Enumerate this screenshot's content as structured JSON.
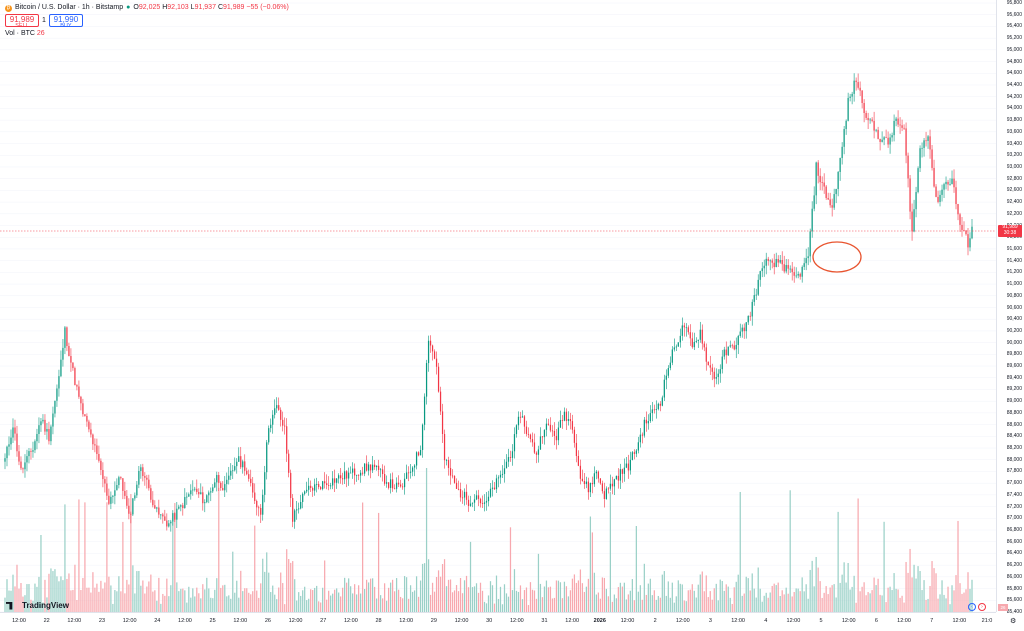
{
  "header": {
    "symbol_title": "Bitcoin / U.S. Dollar · 1h · Bitstamp",
    "open_label": "O",
    "open_value": "92,025",
    "high_label": "H",
    "high_value": "92,103",
    "low_label": "L",
    "low_value": "91,937",
    "close_label": "C",
    "close_value": "91,989",
    "change": "−55 (−0.06%)"
  },
  "trade": {
    "sell_price": "91,989",
    "sell_label": "SELL",
    "buy_price": "91,990",
    "buy_label": "BUY",
    "quantity": "1"
  },
  "volume_legend": {
    "label": "Vol · BTC",
    "value": "26"
  },
  "price_axis": {
    "ticks": [
      "95,800",
      "95,600",
      "95,400",
      "95,200",
      "95,000",
      "94,800",
      "94,600",
      "94,400",
      "94,200",
      "94,000",
      "93,800",
      "93,600",
      "93,400",
      "93,200",
      "93,000",
      "92,800",
      "92,600",
      "92,400",
      "92,200",
      "92,000",
      "91,800",
      "91,600",
      "91,400",
      "91,200",
      "91,000",
      "90,800",
      "90,600",
      "90,400",
      "90,200",
      "90,000",
      "89,800",
      "89,600",
      "89,400",
      "89,200",
      "89,000",
      "88,800",
      "88,600",
      "88,400",
      "88,200",
      "88,000",
      "87,800",
      "87,600",
      "87,400",
      "87,200",
      "87,000",
      "86,800",
      "86,600",
      "86,400",
      "86,200",
      "86,000",
      "85,800",
      "85,600",
      "85,400"
    ],
    "current_price": "91,989",
    "current_countdown": "30:38",
    "volume_tag": "26"
  },
  "time_axis": {
    "ticks": [
      {
        "label": "12:00",
        "bold": false
      },
      {
        "label": "22",
        "bold": false
      },
      {
        "label": "12:00",
        "bold": false
      },
      {
        "label": "23",
        "bold": false
      },
      {
        "label": "12:00",
        "bold": false
      },
      {
        "label": "24",
        "bold": false
      },
      {
        "label": "12:00",
        "bold": false
      },
      {
        "label": "25",
        "bold": false
      },
      {
        "label": "12:00",
        "bold": false
      },
      {
        "label": "26",
        "bold": false
      },
      {
        "label": "12:00",
        "bold": false
      },
      {
        "label": "27",
        "bold": false
      },
      {
        "label": "12:00",
        "bold": false
      },
      {
        "label": "28",
        "bold": false
      },
      {
        "label": "12:00",
        "bold": false
      },
      {
        "label": "29",
        "bold": false
      },
      {
        "label": "12:00",
        "bold": false
      },
      {
        "label": "30",
        "bold": false
      },
      {
        "label": "12:00",
        "bold": false
      },
      {
        "label": "31",
        "bold": false
      },
      {
        "label": "12:00",
        "bold": false
      },
      {
        "label": "2026",
        "bold": true
      },
      {
        "label": "12:00",
        "bold": false
      },
      {
        "label": "2",
        "bold": false
      },
      {
        "label": "12:00",
        "bold": false
      },
      {
        "label": "3",
        "bold": false
      },
      {
        "label": "12:00",
        "bold": false
      },
      {
        "label": "4",
        "bold": false
      },
      {
        "label": "12:00",
        "bold": false
      },
      {
        "label": "5",
        "bold": false
      },
      {
        "label": "12:00",
        "bold": false
      },
      {
        "label": "6",
        "bold": false
      },
      {
        "label": "12:00",
        "bold": false
      },
      {
        "label": "7",
        "bold": false
      },
      {
        "label": "12:00",
        "bold": false
      },
      {
        "label": "21:0",
        "bold": false
      }
    ]
  },
  "branding": {
    "logo_text": "TradingView"
  },
  "colors": {
    "up": "#089981",
    "down": "#f23645",
    "vol_up": "#9ad0c7",
    "vol_down": "#f7a8ae",
    "annotation": "#e8542f",
    "accent": "#2962ff"
  },
  "icons": {
    "symbol": "bitcoin-icon",
    "status": "market-open-dot-icon",
    "scroll_left": "scroll-left-icon",
    "scroll_right": "scroll-right-icon",
    "timezone": "timezone-icon"
  },
  "chart_data": {
    "type": "candlestick",
    "ylim": [
      85400,
      95800
    ],
    "x_start_label": "12:00",
    "x_end_label": "21:0",
    "keypoints": [
      [
        0,
        88000
      ],
      [
        4,
        88600
      ],
      [
        8,
        87800
      ],
      [
        14,
        88200
      ],
      [
        18,
        88700
      ],
      [
        22,
        88400
      ],
      [
        27,
        89400
      ],
      [
        30,
        90200
      ],
      [
        34,
        89500
      ],
      [
        38,
        88900
      ],
      [
        44,
        88300
      ],
      [
        48,
        87800
      ],
      [
        52,
        87300
      ],
      [
        58,
        87700
      ],
      [
        62,
        87000
      ],
      [
        68,
        87900
      ],
      [
        72,
        87500
      ],
      [
        76,
        87100
      ],
      [
        82,
        86900
      ],
      [
        88,
        87200
      ],
      [
        94,
        87500
      ],
      [
        100,
        87300
      ],
      [
        106,
        87700
      ],
      [
        110,
        87500
      ],
      [
        116,
        88000
      ],
      [
        120,
        87900
      ],
      [
        124,
        87400
      ],
      [
        128,
        87100
      ],
      [
        132,
        88600
      ],
      [
        136,
        88900
      ],
      [
        140,
        88500
      ],
      [
        144,
        87000
      ],
      [
        148,
        87300
      ],
      [
        152,
        87500
      ],
      [
        160,
        87600
      ],
      [
        168,
        87700
      ],
      [
        176,
        87800
      ],
      [
        184,
        87900
      ],
      [
        192,
        87600
      ],
      [
        198,
        87500
      ],
      [
        204,
        87900
      ],
      [
        208,
        88200
      ],
      [
        212,
        90100
      ],
      [
        216,
        89600
      ],
      [
        220,
        88000
      ],
      [
        226,
        87500
      ],
      [
        232,
        87300
      ],
      [
        236,
        87400
      ],
      [
        240,
        87200
      ],
      [
        244,
        87500
      ],
      [
        248,
        87700
      ],
      [
        254,
        88200
      ],
      [
        258,
        88800
      ],
      [
        262,
        88400
      ],
      [
        266,
        88100
      ],
      [
        270,
        88600
      ],
      [
        276,
        88400
      ],
      [
        280,
        88800
      ],
      [
        284,
        88600
      ],
      [
        288,
        87700
      ],
      [
        292,
        87500
      ],
      [
        296,
        87800
      ],
      [
        300,
        87400
      ],
      [
        306,
        87700
      ],
      [
        312,
        87900
      ],
      [
        316,
        88200
      ],
      [
        320,
        88600
      ],
      [
        324,
        88800
      ],
      [
        328,
        89000
      ],
      [
        332,
        89600
      ],
      [
        336,
        90000
      ],
      [
        340,
        90300
      ],
      [
        344,
        89900
      ],
      [
        348,
        90200
      ],
      [
        352,
        89600
      ],
      [
        356,
        89400
      ],
      [
        360,
        89800
      ],
      [
        366,
        90000
      ],
      [
        372,
        90400
      ],
      [
        376,
        90900
      ],
      [
        380,
        91400
      ],
      [
        384,
        91300
      ],
      [
        388,
        91400
      ],
      [
        392,
        91200
      ],
      [
        396,
        91100
      ],
      [
        400,
        91300
      ],
      [
        402,
        91500
      ],
      [
        404,
        92200
      ],
      [
        406,
        93000
      ],
      [
        410,
        92600
      ],
      [
        414,
        92300
      ],
      [
        418,
        93100
      ],
      [
        422,
        94100
      ],
      [
        426,
        94500
      ],
      [
        430,
        94000
      ],
      [
        434,
        93700
      ],
      [
        438,
        93500
      ],
      [
        442,
        93400
      ],
      [
        446,
        93800
      ],
      [
        450,
        93600
      ],
      [
        454,
        91900
      ],
      [
        458,
        93300
      ],
      [
        462,
        93600
      ],
      [
        466,
        92400
      ],
      [
        470,
        92700
      ],
      [
        474,
        92800
      ],
      [
        478,
        92000
      ],
      [
        482,
        91700
      ],
      [
        484,
        91980
      ]
    ]
  }
}
